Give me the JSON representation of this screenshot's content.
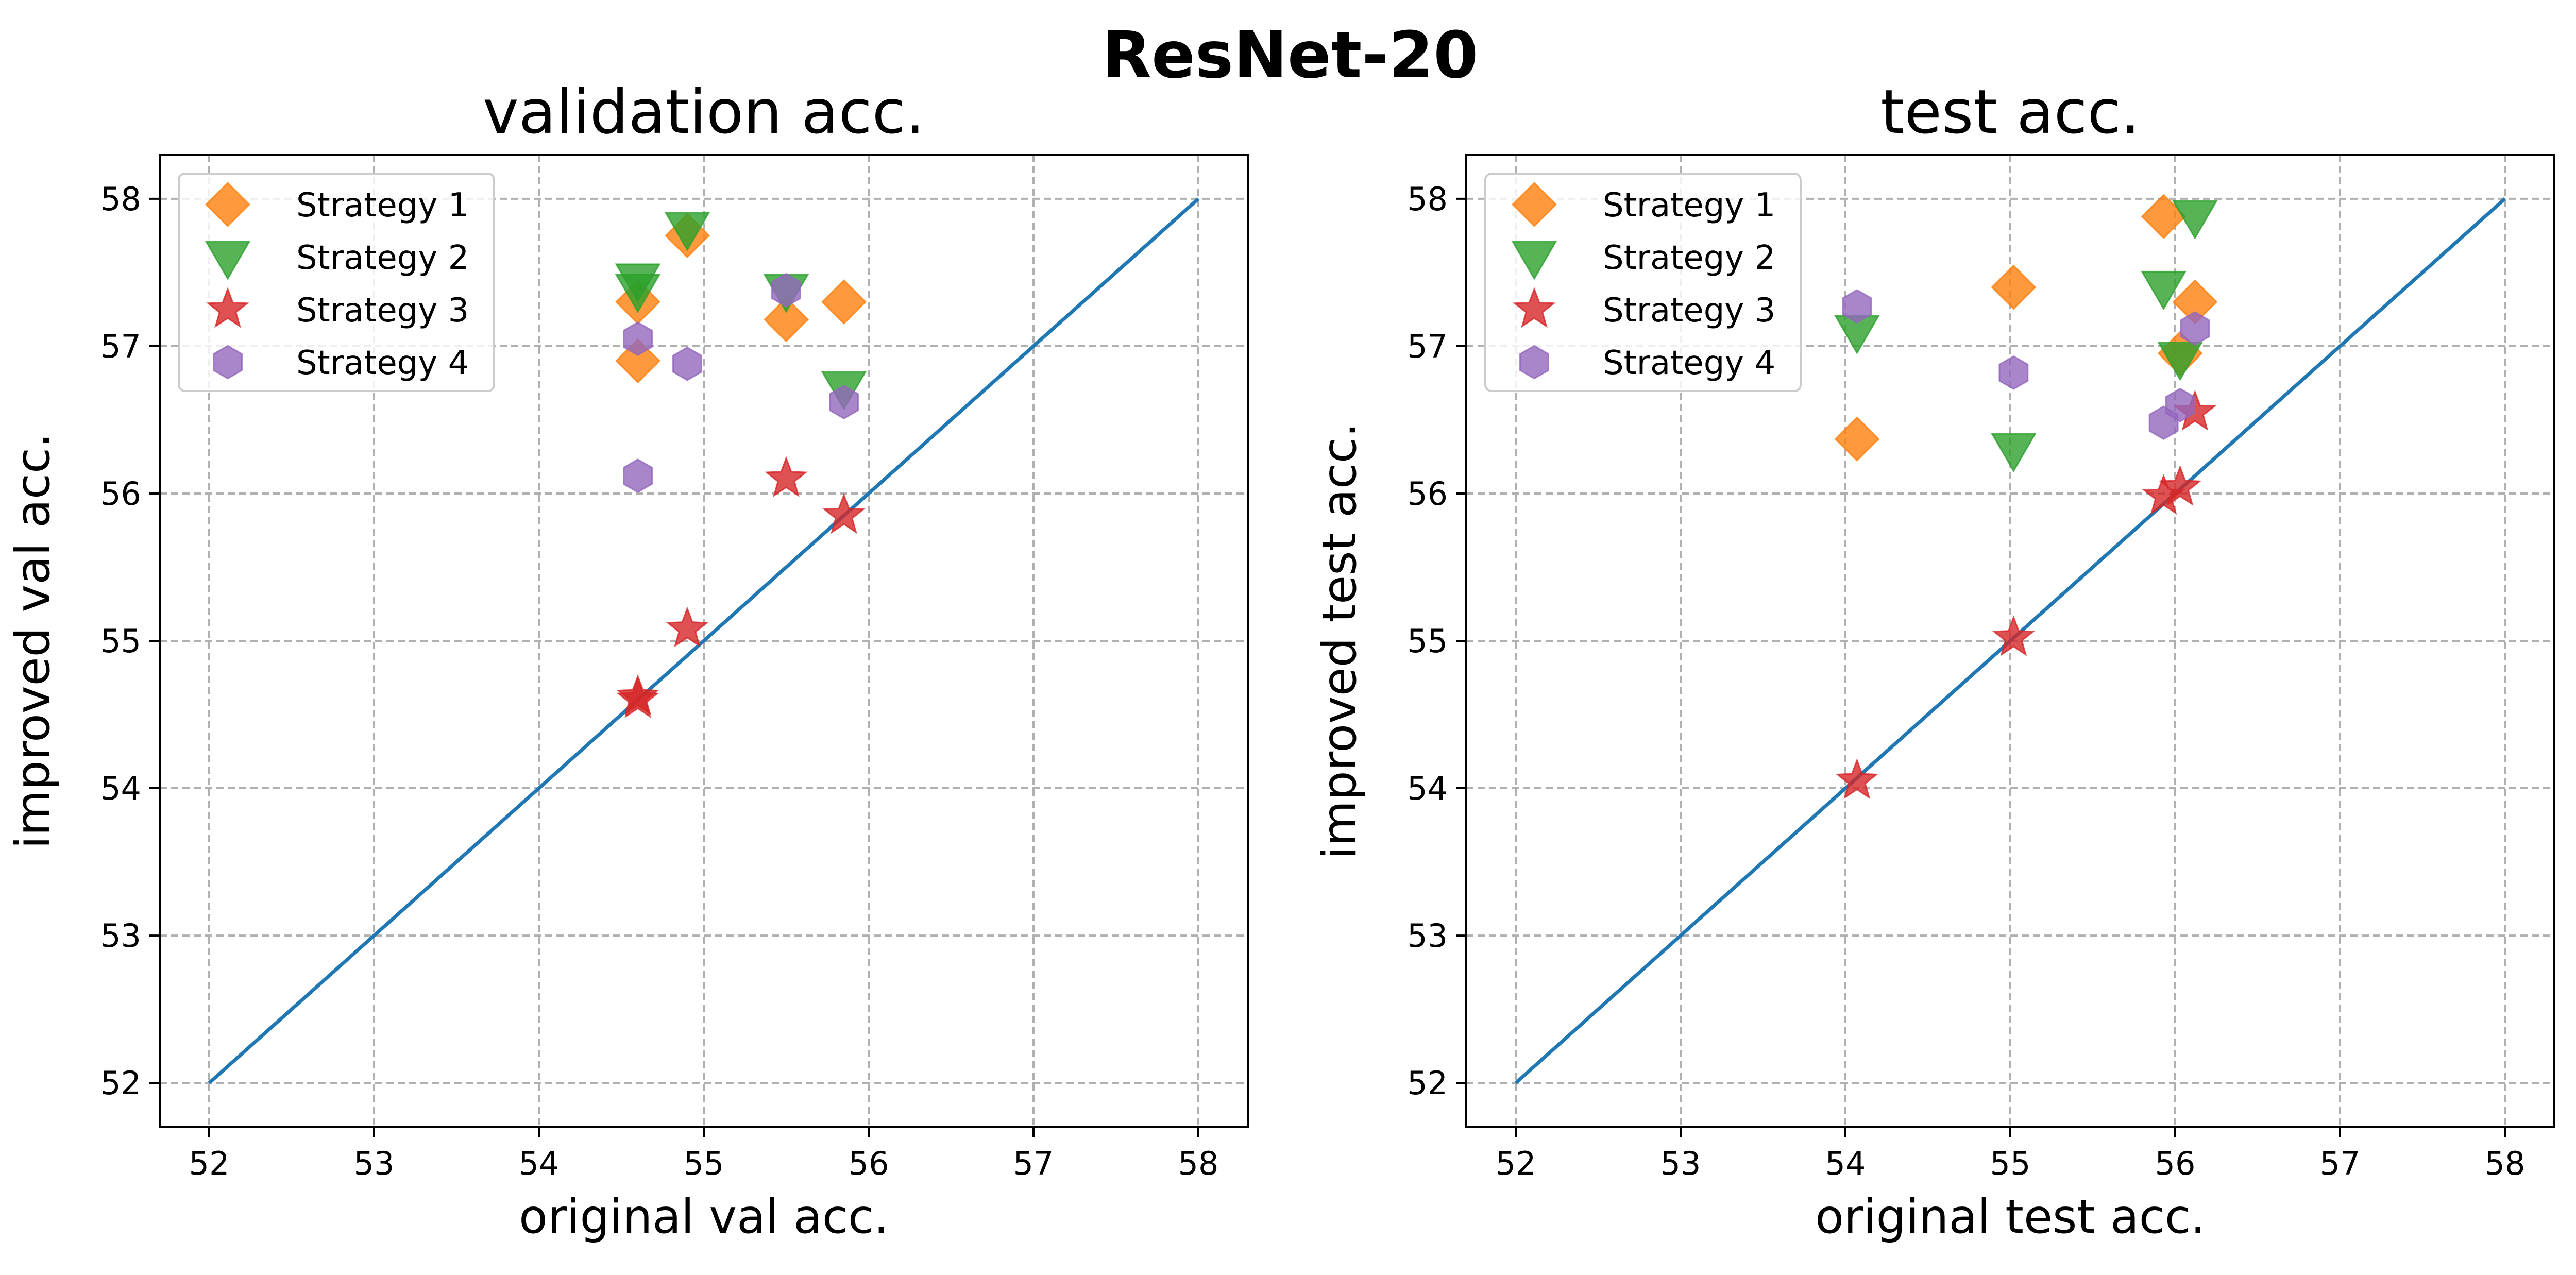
{
  "figure": {
    "suptitle": "ResNet-20"
  },
  "colors": {
    "strategy1": "#ff7f0e",
    "strategy2": "#2ca02c",
    "strategy3": "#d62728",
    "strategy4": "#9467bd",
    "diagonal": "#1f77b4",
    "grid": "#b0b0b0"
  },
  "chart_data": [
    {
      "type": "scatter",
      "title": "validation acc.",
      "xlabel": "original val acc.",
      "ylabel": "improved val acc.",
      "xlim": [
        51.7,
        58.3
      ],
      "ylim": [
        51.7,
        58.3
      ],
      "xticks": [
        52,
        53,
        54,
        55,
        56,
        57,
        58
      ],
      "yticks": [
        52,
        53,
        54,
        55,
        56,
        57,
        58
      ],
      "grid": true,
      "legend_position": "top-left",
      "reference_line": {
        "from": [
          52,
          52
        ],
        "to": [
          58,
          58
        ]
      },
      "series": [
        {
          "name": "Strategy 1",
          "marker": "diamond",
          "color_key": "strategy1",
          "points": [
            [
              54.6,
              56.9
            ],
            [
              54.6,
              57.3
            ],
            [
              54.9,
              57.75
            ],
            [
              55.5,
              57.18
            ],
            [
              55.85,
              57.3
            ]
          ]
        },
        {
          "name": "Strategy 2",
          "marker": "triangle-down",
          "color_key": "strategy2",
          "points": [
            [
              54.6,
              57.45
            ],
            [
              54.6,
              57.38
            ],
            [
              54.9,
              57.8
            ],
            [
              55.5,
              57.38
            ],
            [
              55.85,
              56.72
            ]
          ]
        },
        {
          "name": "Strategy 3",
          "marker": "star",
          "color_key": "strategy3",
          "points": [
            [
              54.6,
              54.6
            ],
            [
              54.6,
              54.62
            ],
            [
              54.9,
              55.08
            ],
            [
              55.5,
              56.1
            ],
            [
              55.85,
              55.85
            ]
          ]
        },
        {
          "name": "Strategy 4",
          "marker": "hexagon",
          "color_key": "strategy4",
          "points": [
            [
              54.6,
              56.12
            ],
            [
              54.6,
              57.05
            ],
            [
              54.9,
              56.88
            ],
            [
              55.5,
              57.38
            ],
            [
              55.85,
              56.62
            ]
          ]
        }
      ]
    },
    {
      "type": "scatter",
      "title": "test acc.",
      "xlabel": "original test acc.",
      "ylabel": "improved test acc.",
      "xlim": [
        51.7,
        58.3
      ],
      "ylim": [
        51.7,
        58.3
      ],
      "xticks": [
        52,
        53,
        54,
        55,
        56,
        57,
        58
      ],
      "yticks": [
        52,
        53,
        54,
        55,
        56,
        57,
        58
      ],
      "grid": true,
      "legend_position": "top-left",
      "reference_line": {
        "from": [
          52,
          52
        ],
        "to": [
          58,
          58
        ]
      },
      "series": [
        {
          "name": "Strategy 1",
          "marker": "diamond",
          "color_key": "strategy1",
          "points": [
            [
              54.07,
              56.37
            ],
            [
              55.02,
              57.4
            ],
            [
              55.93,
              57.88
            ],
            [
              56.03,
              56.95
            ],
            [
              56.12,
              57.3
            ]
          ]
        },
        {
          "name": "Strategy 2",
          "marker": "triangle-down",
          "color_key": "strategy2",
          "points": [
            [
              54.07,
              57.1
            ],
            [
              55.02,
              56.3
            ],
            [
              55.93,
              57.4
            ],
            [
              56.03,
              56.92
            ],
            [
              56.12,
              57.88
            ]
          ]
        },
        {
          "name": "Strategy 3",
          "marker": "star",
          "color_key": "strategy3",
          "points": [
            [
              54.07,
              54.05
            ],
            [
              55.02,
              55.02
            ],
            [
              55.93,
              55.98
            ],
            [
              56.03,
              56.04
            ],
            [
              56.12,
              56.55
            ]
          ]
        },
        {
          "name": "Strategy 4",
          "marker": "hexagon",
          "color_key": "strategy4",
          "points": [
            [
              54.07,
              57.27
            ],
            [
              55.02,
              56.82
            ],
            [
              55.93,
              56.48
            ],
            [
              56.03,
              56.6
            ],
            [
              56.12,
              57.12
            ]
          ]
        }
      ]
    }
  ]
}
